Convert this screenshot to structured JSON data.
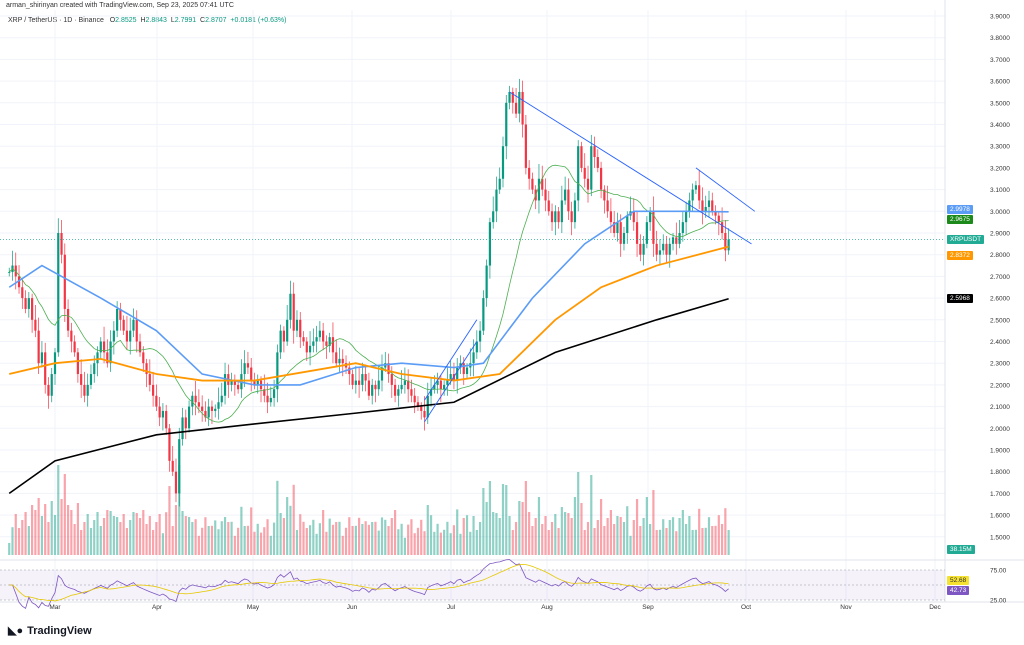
{
  "header": {
    "credit": "arman_shirinyan created with TradingView.com, Sep 23, 2025 07:41 UTC",
    "symbol": "XRP / TetherUS · 1D · Binance",
    "o_label": "O",
    "o": "2.8525",
    "h_label": "H",
    "h": "2.8843",
    "l_label": "L",
    "l": "2.7991",
    "c_label": "C",
    "c": "2.8707",
    "change": "+0.0181 (+0.63%)"
  },
  "labels": {
    "ticker": "XRPUSDT",
    "ma_blue": "2.9978",
    "ma_green": "2.9675",
    "ma_orange": "2.8372",
    "ma_black": "2.5968",
    "volume": "38.15M",
    "rsi_ma": "52.68",
    "rsi": "42.73"
  },
  "colors": {
    "up": "#089981",
    "down": "#f23645",
    "ma_green": "#4caf50",
    "ma_blue": "#5b9cf6",
    "ma_orange": "#ff9800",
    "ma_black": "#000000",
    "rsi": "#7e57c2",
    "rsi_ma": "#e6c800",
    "trendline": "#2962ff"
  },
  "logo": "TradingView",
  "chart_data": {
    "type": "candlestick",
    "start_date": "2025-02-15",
    "closes": [
      2.72,
      2.75,
      2.7,
      2.65,
      2.6,
      2.55,
      2.6,
      2.5,
      2.45,
      2.3,
      2.35,
      2.2,
      2.15,
      2.25,
      2.35,
      2.9,
      2.8,
      2.55,
      2.45,
      2.4,
      2.35,
      2.25,
      2.2,
      2.15,
      2.2,
      2.25,
      2.3,
      2.35,
      2.4,
      2.35,
      2.3,
      2.4,
      2.45,
      2.55,
      2.5,
      2.45,
      2.4,
      2.45,
      2.5,
      2.4,
      2.35,
      2.3,
      2.25,
      2.2,
      2.15,
      2.1,
      2.05,
      2.08,
      2.0,
      1.85,
      1.8,
      1.7,
      1.95,
      2.05,
      2.0,
      2.1,
      2.15,
      2.12,
      2.1,
      2.08,
      2.05,
      2.1,
      2.08,
      2.09,
      2.12,
      2.15,
      2.25,
      2.2,
      2.22,
      2.2,
      2.18,
      2.25,
      2.3,
      2.28,
      2.22,
      2.2,
      2.22,
      2.18,
      2.15,
      2.12,
      2.14,
      2.18,
      2.35,
      2.45,
      2.4,
      2.5,
      2.62,
      2.45,
      2.5,
      2.42,
      2.4,
      2.35,
      2.38,
      2.4,
      2.42,
      2.45,
      2.4,
      2.38,
      2.42,
      2.35,
      2.3,
      2.32,
      2.3,
      2.28,
      2.25,
      2.2,
      2.22,
      2.2,
      2.25,
      2.22,
      2.15,
      2.2,
      2.18,
      2.22,
      2.28,
      2.3,
      2.25,
      2.2,
      2.15,
      2.18,
      2.2,
      2.22,
      2.18,
      2.15,
      2.12,
      2.1,
      2.08,
      2.05,
      2.15,
      2.18,
      2.2,
      2.22,
      2.18,
      2.2,
      2.22,
      2.25,
      2.22,
      2.28,
      2.3,
      2.25,
      2.28,
      2.3,
      2.35,
      2.4,
      2.45,
      2.6,
      2.75,
      2.95,
      3.0,
      3.1,
      3.15,
      3.3,
      3.5,
      3.55,
      3.5,
      3.45,
      3.55,
      3.4,
      3.2,
      3.15,
      3.1,
      3.05,
      3.15,
      3.1,
      3.05,
      3.0,
      2.95,
      3.0,
      2.95,
      3.05,
      3.1,
      3.0,
      2.95,
      3.05,
      3.3,
      3.2,
      3.15,
      3.1,
      3.3,
      3.25,
      3.2,
      3.1,
      3.05,
      3.0,
      2.95,
      2.9,
      2.95,
      2.85,
      2.9,
      2.98,
      3.0,
      2.95,
      2.85,
      2.8,
      2.85,
      2.95,
      3.0,
      2.85,
      2.8,
      2.82,
      2.85,
      2.8,
      2.85,
      2.88,
      2.85,
      2.9,
      2.95,
      3.0,
      3.05,
      3.1,
      3.12,
      3.05,
      3.0,
      3.02,
      3.05,
      3.0,
      2.98,
      2.95,
      2.9,
      2.82,
      2.87
    ],
    "ma_blue": [
      [
        "2025-02-15",
        2.65
      ],
      [
        "2025-02-25",
        2.75
      ],
      [
        "2025-03-15",
        2.6
      ],
      [
        "2025-04-01",
        2.45
      ],
      [
        "2025-04-15",
        2.25
      ],
      [
        "2025-05-01",
        2.2
      ],
      [
        "2025-05-15",
        2.2
      ],
      [
        "2025-06-01",
        2.28
      ],
      [
        "2025-06-15",
        2.3
      ],
      [
        "2025-07-01",
        2.28
      ],
      [
        "2025-07-10",
        2.3
      ],
      [
        "2025-07-25",
        2.6
      ],
      [
        "2025-08-10",
        2.85
      ],
      [
        "2025-08-25",
        3.0
      ],
      [
        "2025-09-10",
        3.0
      ],
      [
        "2025-09-23",
        2.9978
      ]
    ],
    "ma_orange": [
      [
        "2025-02-15",
        2.25
      ],
      [
        "2025-03-01",
        2.3
      ],
      [
        "2025-03-15",
        2.32
      ],
      [
        "2025-04-01",
        2.25
      ],
      [
        "2025-04-15",
        2.22
      ],
      [
        "2025-05-01",
        2.22
      ],
      [
        "2025-06-01",
        2.3
      ],
      [
        "2025-06-15",
        2.25
      ],
      [
        "2025-07-01",
        2.22
      ],
      [
        "2025-07-15",
        2.25
      ],
      [
        "2025-08-01",
        2.5
      ],
      [
        "2025-08-15",
        2.65
      ],
      [
        "2025-09-01",
        2.75
      ],
      [
        "2025-09-23",
        2.8372
      ]
    ],
    "ma_black": [
      [
        "2025-02-15",
        1.7
      ],
      [
        "2025-03-01",
        1.85
      ],
      [
        "2025-04-01",
        1.97
      ],
      [
        "2025-05-01",
        2.02
      ],
      [
        "2025-06-01",
        2.07
      ],
      [
        "2025-07-01",
        2.12
      ],
      [
        "2025-08-01",
        2.35
      ],
      [
        "2025-09-01",
        2.5
      ],
      [
        "2025-09-23",
        2.5968
      ]
    ],
    "trendlines": [
      [
        [
          "2025-07-18",
          3.55
        ],
        [
          "2025-09-30",
          2.85
        ]
      ],
      [
        [
          "2025-09-13",
          3.2
        ],
        [
          "2025-10-01",
          3.0
        ]
      ],
      [
        [
          "2025-06-22",
          2.03
        ],
        [
          "2025-07-08",
          2.4
        ]
      ],
      [
        [
          "2025-06-22",
          2.13
        ],
        [
          "2025-07-08",
          2.5
        ]
      ]
    ],
    "x_ticks": [
      "Mar",
      "Apr",
      "May",
      "Jun",
      "Jul",
      "Aug",
      "Sep",
      "Oct",
      "Nov",
      "Dec"
    ],
    "y_ticks": [
      "1.5000",
      "1.6000",
      "1.7000",
      "1.8000",
      "1.9000",
      "2.0000",
      "2.1000",
      "2.2000",
      "2.3000",
      "2.4000",
      "2.5000",
      "2.6000",
      "2.7000",
      "2.8000",
      "2.9000",
      "3.0000",
      "3.1000",
      "3.2000",
      "3.3000",
      "3.4000",
      "3.5000",
      "3.6000",
      "3.7000",
      "3.8000",
      "3.9000"
    ],
    "ylim": [
      1.5,
      3.9
    ],
    "rsi_ticks": [
      "75.00",
      "25.00"
    ]
  }
}
